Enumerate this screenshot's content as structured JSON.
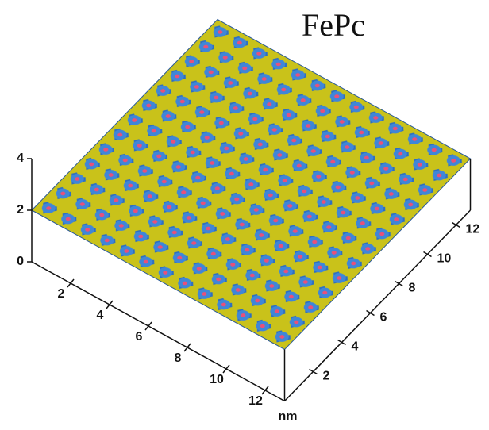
{
  "chart_data": {
    "type": "surface",
    "title": "FePc",
    "xlabel": "nm",
    "xlim": [
      0,
      13
    ],
    "ylim": [
      0,
      13
    ],
    "zlim": [
      0,
      4
    ],
    "xticks": [
      2,
      4,
      6,
      8,
      10,
      12
    ],
    "yticks": [
      2,
      4,
      6,
      8,
      10,
      12
    ],
    "zticks": [
      0,
      2,
      4
    ]
  }
}
